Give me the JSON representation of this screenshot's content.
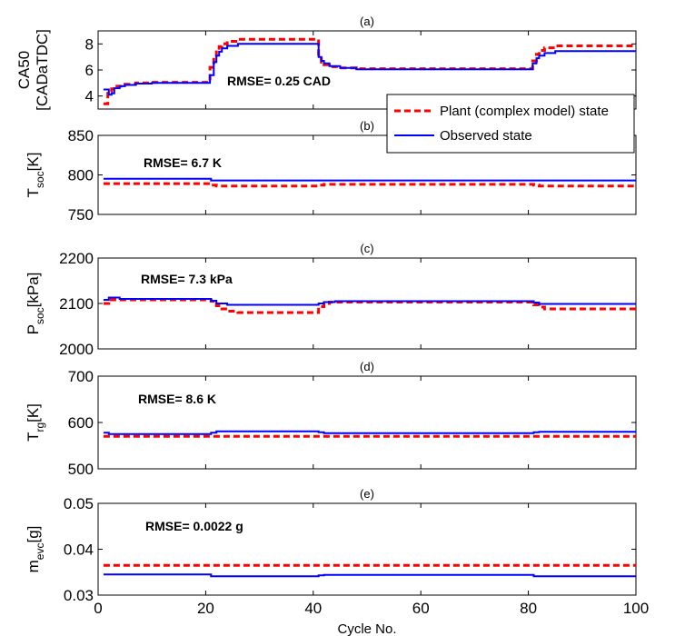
{
  "chart_data": [
    {
      "type": "line",
      "title": "(a)",
      "ylabel": [
        "CA50",
        "[CADaTDC]"
      ],
      "ylim": [
        3,
        9
      ],
      "yticks": [
        4,
        6,
        8
      ],
      "annotation": "RMSE= 0.25 CAD",
      "series": [
        {
          "name": "Plant (complex model) state",
          "color": "#ff0000",
          "style": "dashed",
          "x": [
            1,
            1.8,
            1.8,
            2.5,
            2.5,
            3.5,
            3.5,
            5,
            5,
            7,
            7,
            10,
            10,
            20.8,
            20.8,
            21.5,
            21.5,
            22,
            22,
            22.5,
            22.5,
            23,
            23,
            24,
            24,
            26,
            26,
            41,
            41,
            41.5,
            41.5,
            42,
            42,
            43,
            43,
            45,
            45,
            48,
            48,
            80.8,
            80.8,
            81.5,
            81.5,
            82,
            82,
            83,
            83,
            85,
            85,
            100
          ],
          "y": [
            3.4,
            3.4,
            4.35,
            4.35,
            4.55,
            4.55,
            4.75,
            4.75,
            4.9,
            4.9,
            5.0,
            5.0,
            5.05,
            5.05,
            6.2,
            6.2,
            7.0,
            7.0,
            7.5,
            7.5,
            7.8,
            7.8,
            8.0,
            8.0,
            8.2,
            8.2,
            8.35,
            8.35,
            6.9,
            6.9,
            6.6,
            6.6,
            6.4,
            6.4,
            6.25,
            6.25,
            6.15,
            6.15,
            6.1,
            6.1,
            6.7,
            6.7,
            7.2,
            7.2,
            7.5,
            7.5,
            7.7,
            7.7,
            7.85,
            7.85
          ]
        },
        {
          "name": "Observed state",
          "color": "#0000ff",
          "style": "solid",
          "x": [
            1,
            2,
            2,
            2.5,
            2.5,
            3,
            3,
            4,
            4,
            5,
            5,
            7,
            7,
            10,
            10,
            20.8,
            20.8,
            21.5,
            21.5,
            22,
            22,
            22.5,
            22.5,
            23,
            23,
            24,
            24,
            26,
            26,
            41,
            41,
            41.5,
            41.5,
            42,
            42,
            43,
            43,
            45,
            45,
            48,
            48,
            80.8,
            80.8,
            81.5,
            81.5,
            82,
            82,
            83,
            83,
            85,
            85,
            100
          ],
          "y": [
            4.5,
            4.5,
            4.1,
            4.1,
            4.2,
            4.2,
            4.6,
            4.6,
            4.75,
            4.75,
            4.85,
            4.85,
            4.95,
            4.95,
            5.0,
            5.0,
            5.6,
            5.6,
            6.6,
            6.6,
            7.1,
            7.1,
            7.4,
            7.4,
            7.65,
            7.65,
            7.85,
            7.85,
            8.0,
            8.0,
            7.0,
            7.0,
            6.7,
            6.7,
            6.5,
            6.5,
            6.3,
            6.3,
            6.15,
            6.15,
            6.05,
            6.05,
            6.5,
            6.5,
            6.9,
            6.9,
            7.1,
            7.1,
            7.3,
            7.3,
            7.45,
            7.45
          ]
        }
      ]
    },
    {
      "type": "line",
      "title": "(b)",
      "ylabel": {
        "main": "T",
        "sub": "soc",
        "unit": "[K]"
      },
      "ylim": [
        750,
        850
      ],
      "yticks": [
        750,
        800,
        850
      ],
      "annotation": "RMSE= 6.7 K",
      "series": [
        {
          "name": "Plant (complex model) state",
          "color": "#ff0000",
          "style": "dashed",
          "x": [
            1,
            21,
            21,
            22,
            22,
            41,
            41,
            42,
            42,
            81,
            81,
            82,
            82,
            100
          ],
          "y": [
            789,
            789,
            787,
            787,
            786,
            786,
            787,
            787,
            788,
            788,
            787,
            787,
            786,
            786
          ]
        },
        {
          "name": "Observed state",
          "color": "#0000ff",
          "style": "solid",
          "x": [
            1,
            21,
            21,
            100
          ],
          "y": [
            795,
            795,
            793,
            793
          ]
        }
      ]
    },
    {
      "type": "line",
      "title": "(c)",
      "ylabel": {
        "main": "P",
        "sub": "soc",
        "unit": "[kPa]"
      },
      "ylim": [
        2000,
        2200
      ],
      "yticks": [
        2000,
        2100,
        2200
      ],
      "annotation": "RMSE= 7.3 kPa",
      "series": [
        {
          "name": "Plant (complex model) state",
          "color": "#ff0000",
          "style": "dashed",
          "x": [
            1,
            2,
            2,
            21,
            21,
            22,
            22,
            23,
            23,
            24,
            24,
            26,
            26,
            41,
            41,
            42,
            42,
            43,
            43,
            81,
            81,
            82,
            82,
            83,
            83,
            100
          ],
          "y": [
            2100,
            2100,
            2108,
            2108,
            2105,
            2105,
            2095,
            2095,
            2088,
            2088,
            2083,
            2083,
            2080,
            2080,
            2093,
            2093,
            2100,
            2100,
            2103,
            2103,
            2097,
            2097,
            2092,
            2092,
            2088,
            2088
          ]
        },
        {
          "name": "Observed state",
          "color": "#0000ff",
          "style": "solid",
          "x": [
            1,
            2,
            2,
            4,
            4,
            21,
            21,
            22,
            22,
            24,
            24,
            41,
            41,
            42,
            42,
            44,
            44,
            81,
            81,
            82,
            82,
            100
          ],
          "y": [
            2108,
            2108,
            2113,
            2113,
            2110,
            2110,
            2106,
            2106,
            2100,
            2100,
            2097,
            2097,
            2100,
            2100,
            2103,
            2103,
            2105,
            2105,
            2102,
            2102,
            2099,
            2099
          ]
        }
      ]
    },
    {
      "type": "line",
      "title": "(d)",
      "ylabel": {
        "main": "T",
        "sub": "rg",
        "unit": "[K]"
      },
      "ylim": [
        500,
        700
      ],
      "yticks": [
        500,
        600,
        700
      ],
      "annotation": "RMSE= 8.6 K",
      "series": [
        {
          "name": "Plant (complex model) state",
          "color": "#ff0000",
          "style": "dashed",
          "x": [
            1,
            100
          ],
          "y": [
            570,
            570
          ]
        },
        {
          "name": "Observed state",
          "color": "#0000ff",
          "style": "solid",
          "x": [
            1,
            2,
            2,
            21,
            21,
            22,
            22,
            41,
            41,
            42,
            42,
            81,
            81,
            82,
            82,
            100
          ],
          "y": [
            578,
            578,
            575,
            575,
            578,
            578,
            581,
            581,
            579,
            579,
            577,
            577,
            579,
            579,
            580,
            580
          ]
        }
      ]
    },
    {
      "type": "line",
      "title": "(e)",
      "ylabel": {
        "main": "m",
        "sub": "evc",
        "unit": "[g]"
      },
      "ylim": [
        0.03,
        0.05
      ],
      "yticks": [
        0.03,
        0.04,
        0.05
      ],
      "yticklabels": [
        "0.03",
        "0.04",
        "0.05"
      ],
      "annotation": "RMSE= 0.0022 g",
      "xlim": [
        0,
        100
      ],
      "xticks": [
        0,
        20,
        40,
        60,
        80,
        100
      ],
      "xlabel": "Cycle No.",
      "series": [
        {
          "name": "Plant (complex model) state",
          "color": "#ff0000",
          "style": "dashed",
          "x": [
            1,
            100
          ],
          "y": [
            0.0365,
            0.0365
          ]
        },
        {
          "name": "Observed state",
          "color": "#0000ff",
          "style": "solid",
          "x": [
            1,
            21,
            21,
            41,
            41,
            42,
            42,
            81,
            81,
            100
          ],
          "y": [
            0.0345,
            0.0345,
            0.0341,
            0.0341,
            0.0343,
            0.0343,
            0.0344,
            0.0344,
            0.0341,
            0.0341
          ]
        }
      ]
    }
  ],
  "legend": {
    "placement": "right, between panels (a) and (b)",
    "entries": [
      "Plant (complex model) state",
      "Observed state"
    ]
  }
}
